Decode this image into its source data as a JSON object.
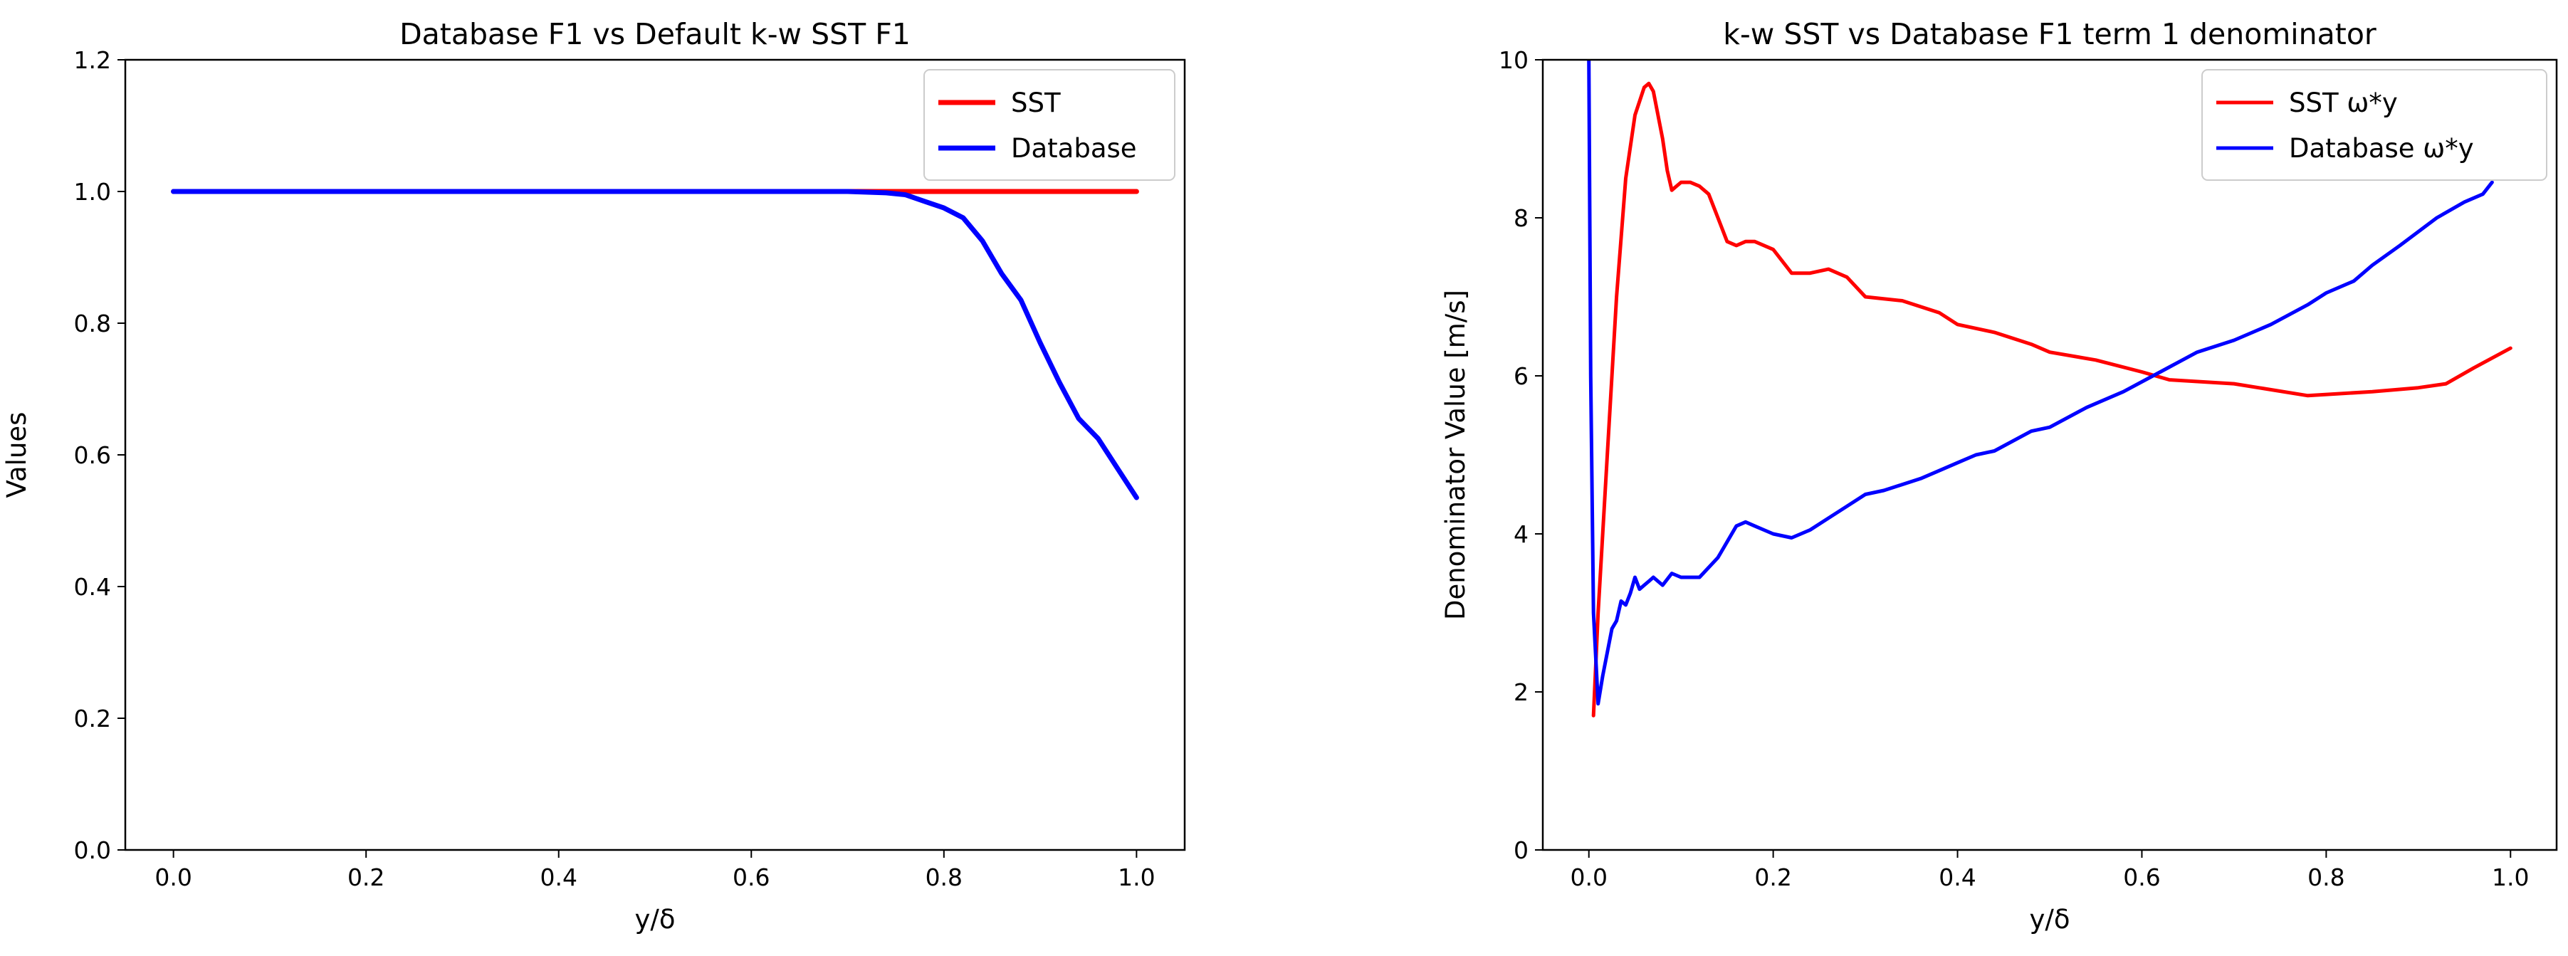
{
  "figure": {
    "background": "#ffffff"
  },
  "chart_data": [
    {
      "type": "line",
      "title": "Database F1 vs Default k-w SST F1",
      "xlabel": "y/δ",
      "ylabel": "Values",
      "xlim": [
        -0.05,
        1.05
      ],
      "ylim": [
        0.0,
        1.2
      ],
      "xticks": [
        0.0,
        0.2,
        0.4,
        0.6,
        0.8,
        1.0
      ],
      "xtick_labels": [
        "0.0",
        "0.2",
        "0.4",
        "0.6",
        "0.8",
        "1.0"
      ],
      "yticks": [
        0.0,
        0.2,
        0.4,
        0.6,
        0.8,
        1.0,
        1.2
      ],
      "ytick_labels": [
        "0.0",
        "0.2",
        "0.4",
        "0.6",
        "0.8",
        "1.0",
        "1.2"
      ],
      "legend_position": "top-right",
      "series": [
        {
          "name": "SST",
          "color": "#ff0000",
          "x": [
            0.0,
            0.2,
            0.4,
            0.6,
            0.8,
            1.0
          ],
          "y": [
            1.0,
            1.0,
            1.0,
            1.0,
            1.0,
            1.0
          ]
        },
        {
          "name": "Database",
          "color": "#0000ff",
          "x": [
            0.0,
            0.2,
            0.4,
            0.6,
            0.7,
            0.74,
            0.76,
            0.78,
            0.8,
            0.82,
            0.84,
            0.86,
            0.88,
            0.9,
            0.92,
            0.94,
            0.96,
            0.98,
            1.0
          ],
          "y": [
            1.0,
            1.0,
            1.0,
            1.0,
            1.0,
            0.998,
            0.995,
            0.985,
            0.975,
            0.96,
            0.925,
            0.875,
            0.835,
            0.77,
            0.71,
            0.655,
            0.625,
            0.58,
            0.535
          ]
        }
      ]
    },
    {
      "type": "line",
      "title": "k-w SST vs Database F1 term 1 denominator",
      "xlabel": "y/δ",
      "ylabel": "Denominator Value [m/s]",
      "xlim": [
        -0.05,
        1.05
      ],
      "ylim": [
        0,
        10
      ],
      "xticks": [
        0.0,
        0.2,
        0.4,
        0.6,
        0.8,
        1.0
      ],
      "xtick_labels": [
        "0.0",
        "0.2",
        "0.4",
        "0.6",
        "0.8",
        "1.0"
      ],
      "yticks": [
        0,
        2,
        4,
        6,
        8,
        10
      ],
      "ytick_labels": [
        "0",
        "2",
        "4",
        "6",
        "8",
        "10"
      ],
      "legend_position": "top-right",
      "series": [
        {
          "name": "SST ω*y",
          "color": "#ff0000",
          "x": [
            0.005,
            0.01,
            0.02,
            0.03,
            0.04,
            0.05,
            0.06,
            0.065,
            0.07,
            0.075,
            0.08,
            0.085,
            0.09,
            0.095,
            0.1,
            0.11,
            0.12,
            0.13,
            0.14,
            0.15,
            0.16,
            0.17,
            0.18,
            0.2,
            0.22,
            0.24,
            0.26,
            0.28,
            0.3,
            0.34,
            0.38,
            0.4,
            0.44,
            0.48,
            0.5,
            0.55,
            0.6,
            0.63,
            0.7,
            0.78,
            0.85,
            0.9,
            0.93,
            0.96,
            1.0
          ],
          "y": [
            1.7,
            3.0,
            5.0,
            7.0,
            8.5,
            9.3,
            9.65,
            9.7,
            9.6,
            9.3,
            9.0,
            8.6,
            8.35,
            8.4,
            8.45,
            8.45,
            8.4,
            8.3,
            8.0,
            7.7,
            7.65,
            7.7,
            7.7,
            7.6,
            7.3,
            7.3,
            7.35,
            7.25,
            7.0,
            6.95,
            6.8,
            6.65,
            6.55,
            6.4,
            6.3,
            6.2,
            6.05,
            5.95,
            5.9,
            5.75,
            5.8,
            5.85,
            5.9,
            6.1,
            6.35
          ]
        },
        {
          "name": "Database ω*y",
          "color": "#0000ff",
          "x": [
            0.0,
            0.002,
            0.005,
            0.01,
            0.015,
            0.02,
            0.025,
            0.03,
            0.035,
            0.04,
            0.045,
            0.05,
            0.055,
            0.06,
            0.065,
            0.07,
            0.08,
            0.09,
            0.1,
            0.11,
            0.12,
            0.14,
            0.16,
            0.17,
            0.18,
            0.19,
            0.2,
            0.22,
            0.24,
            0.26,
            0.28,
            0.3,
            0.32,
            0.36,
            0.38,
            0.4,
            0.42,
            0.44,
            0.48,
            0.5,
            0.54,
            0.58,
            0.62,
            0.66,
            0.7,
            0.74,
            0.78,
            0.8,
            0.83,
            0.85,
            0.88,
            0.92,
            0.95,
            0.97,
            0.98
          ],
          "y": [
            10.0,
            6.0,
            3.0,
            1.85,
            2.2,
            2.5,
            2.8,
            2.9,
            3.15,
            3.1,
            3.25,
            3.45,
            3.3,
            3.35,
            3.4,
            3.45,
            3.35,
            3.5,
            3.45,
            3.45,
            3.45,
            3.7,
            4.1,
            4.15,
            4.1,
            4.05,
            4.0,
            3.95,
            4.05,
            4.2,
            4.35,
            4.5,
            4.55,
            4.7,
            4.8,
            4.9,
            5.0,
            5.05,
            5.3,
            5.35,
            5.6,
            5.8,
            6.05,
            6.3,
            6.45,
            6.65,
            6.9,
            7.05,
            7.2,
            7.4,
            7.65,
            8.0,
            8.2,
            8.3,
            8.45
          ]
        }
      ]
    }
  ]
}
